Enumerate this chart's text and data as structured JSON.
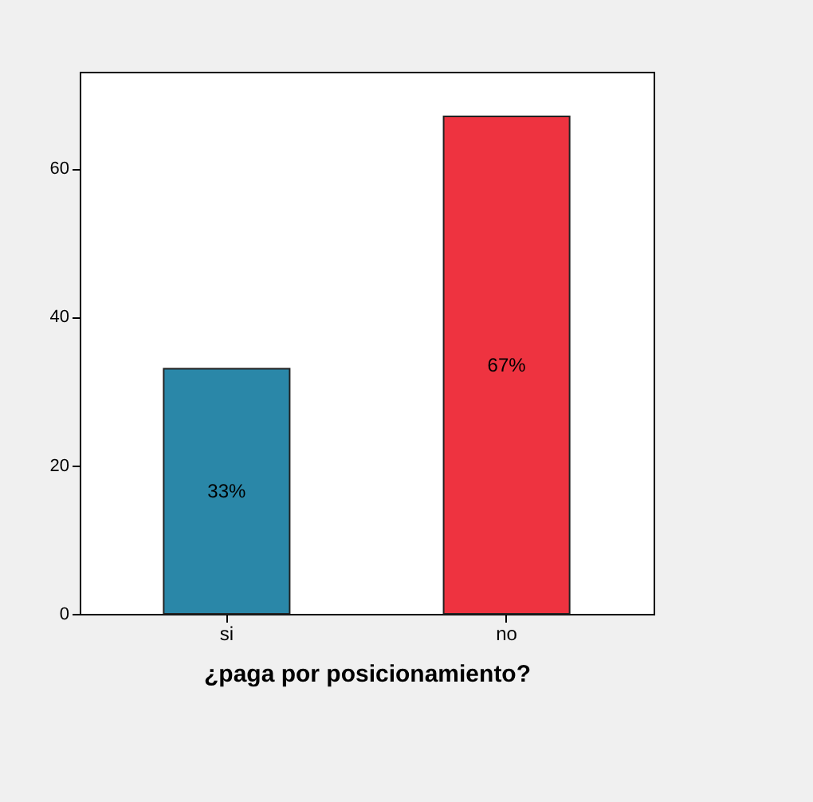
{
  "chart_data": {
    "type": "bar",
    "xlabel": "¿paga por posicionamiento?",
    "categories": [
      "si",
      "no"
    ],
    "values": [
      33,
      67
    ],
    "value_labels": [
      "33%",
      "67%"
    ],
    "colors": [
      "#2a87a8",
      "#ee3340"
    ],
    "ylim": [
      0,
      73
    ],
    "yticks": [
      0,
      20,
      40,
      60
    ],
    "grid": false
  }
}
